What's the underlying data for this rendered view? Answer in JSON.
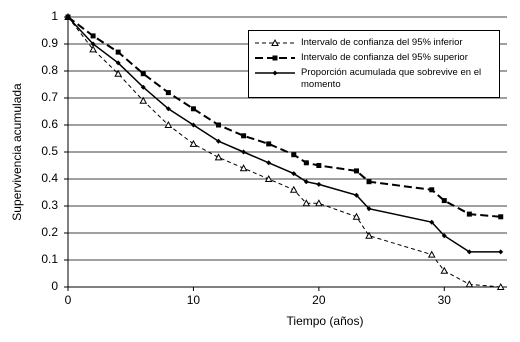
{
  "chart_data": {
    "type": "line",
    "x_label": "Tiempo (años)",
    "y_label": "Supervivencia acumulada",
    "x": [
      0,
      2,
      4,
      6,
      8,
      10,
      12,
      14,
      16,
      18,
      19,
      20,
      23,
      24,
      29,
      30,
      32,
      34.5
    ],
    "series": [
      {
        "name": "Intervalo de confianza del 95% inferior",
        "color": "#000000",
        "dash": "4,3",
        "width": 1,
        "marker": "triangle-open",
        "values": [
          1,
          0.88,
          0.79,
          0.69,
          0.6,
          0.53,
          0.48,
          0.44,
          0.4,
          0.36,
          0.31,
          0.31,
          0.26,
          0.19,
          0.12,
          0.06,
          0.01,
          0
        ]
      },
      {
        "name": "Intervalo de confianza del 95% superior",
        "color": "#000000",
        "dash": "8,4",
        "width": 2,
        "marker": "square",
        "values": [
          1,
          0.93,
          0.87,
          0.79,
          0.72,
          0.66,
          0.6,
          0.56,
          0.53,
          0.49,
          0.46,
          0.45,
          0.43,
          0.39,
          0.36,
          0.32,
          0.27,
          0.26
        ]
      },
      {
        "name": "Proporción acumulada que sobrevive en el momento",
        "color": "#000000",
        "dash": "none",
        "width": 1.5,
        "marker": "diamond",
        "values": [
          1,
          0.9,
          0.83,
          0.74,
          0.66,
          0.6,
          0.54,
          0.5,
          0.46,
          0.42,
          0.39,
          0.38,
          0.34,
          0.29,
          0.24,
          0.19,
          0.13,
          0.13
        ]
      }
    ],
    "xlim": [
      0,
      35
    ],
    "xticks": [
      0,
      10,
      20,
      30
    ],
    "ylim": [
      0,
      1
    ],
    "yticks": [
      0,
      0.1,
      0.2,
      0.3,
      0.4,
      0.5,
      0.6,
      0.7,
      0.8,
      0.9,
      1
    ],
    "grid": true,
    "legend": "upper right"
  }
}
